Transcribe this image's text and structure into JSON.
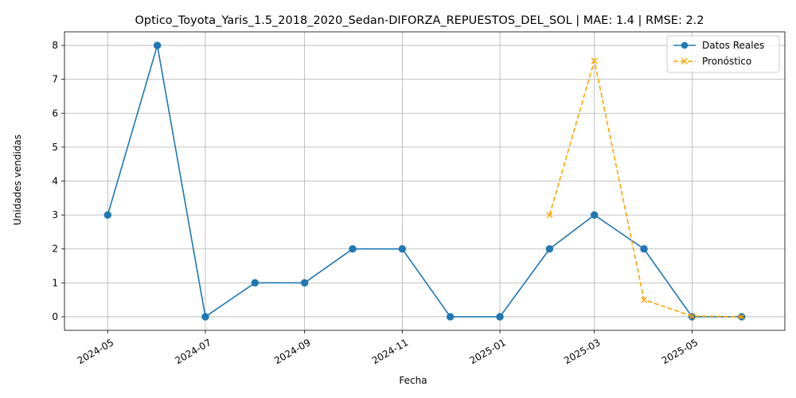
{
  "chart_data": {
    "type": "line",
    "title": "Optico_Toyota_Yaris_1.5_2018_2020_Sedan-DIFORZA_REPUESTOS_DEL_SOL | MAE: 1.4 | RMSE: 2.2",
    "xlabel": "Fecha",
    "ylabel": "Unidades vendidas",
    "ylim": [
      -0.4,
      8.4
    ],
    "xlim": [
      "2024-04-04",
      "2025-06-28"
    ],
    "x_ticks": [
      "2024-05",
      "2024-07",
      "2024-09",
      "2024-11",
      "2025-01",
      "2025-03",
      "2025-05"
    ],
    "y_ticks": [
      "0",
      "1",
      "2",
      "3",
      "4",
      "5",
      "6",
      "7",
      "8"
    ],
    "grid": true,
    "legend_position": "top-right",
    "series": [
      {
        "name": "Datos Reales",
        "color": "#1f77b4",
        "line_style": "solid",
        "marker": "circle",
        "x": [
          "2024-05-01",
          "2024-06-01",
          "2024-07-01",
          "2024-08-01",
          "2024-09-01",
          "2024-10-01",
          "2024-11-01",
          "2024-12-01",
          "2025-01-01",
          "2025-02-01",
          "2025-03-01",
          "2025-04-01",
          "2025-05-01",
          "2025-06-01"
        ],
        "values": [
          3,
          8,
          0,
          1,
          1,
          2,
          2,
          0,
          0,
          2,
          3,
          2,
          0,
          0
        ]
      },
      {
        "name": "Pronóstico",
        "color": "#ffa500",
        "line_style": "dashed",
        "marker": "x",
        "x": [
          "2025-02-01",
          "2025-03-01",
          "2025-04-01",
          "2025-05-01",
          "2025-06-01"
        ],
        "values": [
          3.0,
          7.55,
          0.5,
          0.02,
          0.0
        ]
      }
    ]
  }
}
